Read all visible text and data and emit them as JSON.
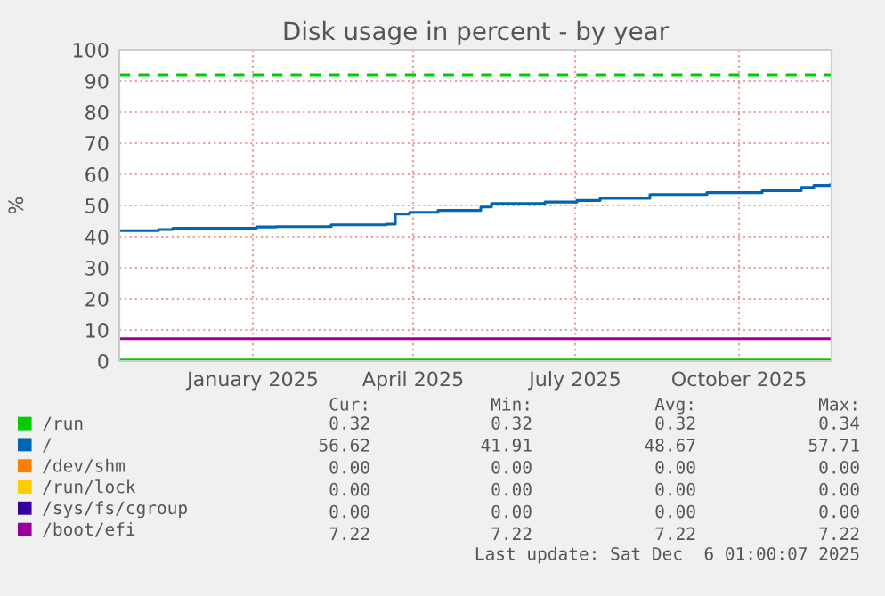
{
  "chart_data": {
    "type": "line",
    "title": "Disk usage in percent - by year",
    "ylabel": "%",
    "xlim": [
      "2024-11-01",
      "2025-12-06"
    ],
    "xticks": [
      {
        "value": "2025-01-15",
        "label": "January 2025"
      },
      {
        "value": "2025-04-15",
        "label": "April 2025"
      },
      {
        "value": "2025-07-15",
        "label": "July 2025"
      },
      {
        "value": "2025-10-15",
        "label": "October 2025"
      }
    ],
    "ylim": [
      0,
      100
    ],
    "yticks": [
      0,
      10,
      20,
      30,
      40,
      50,
      60,
      70,
      80,
      90,
      100
    ],
    "grid": true,
    "legend": "bottom left",
    "ref_lines": [
      {
        "axis": "y",
        "value": 92,
        "color": "#00cc00",
        "line_style": "dashed"
      }
    ],
    "series": [
      {
        "name": "/run",
        "color": "#00cc00",
        "x": [
          "2024-11-01",
          "2025-12-05"
        ],
        "values": [
          0.32,
          0.32
        ]
      },
      {
        "name": "/",
        "color": "#0066b3",
        "type": "step",
        "x": [
          "2024-11-01",
          "2024-11-23",
          "2024-12-01",
          "2025-01-17",
          "2025-01-28",
          "2025-02-28",
          "2025-03-31",
          "2025-04-05",
          "2025-04-13",
          "2025-04-29",
          "2025-05-23",
          "2025-05-29",
          "2025-06-28",
          "2025-07-16",
          "2025-07-29",
          "2025-08-26",
          "2025-09-27",
          "2025-10-28",
          "2025-11-19",
          "2025-11-26",
          "2025-12-05"
        ],
        "values": [
          41.91,
          42.3,
          42.7,
          43.1,
          43.2,
          43.8,
          44.0,
          47.2,
          47.8,
          48.4,
          49.5,
          50.6,
          51.1,
          51.6,
          52.3,
          53.5,
          54.1,
          54.7,
          55.8,
          56.4,
          56.62
        ]
      },
      {
        "name": "/dev/shm",
        "color": "#ff8000",
        "values": [
          null
        ]
      },
      {
        "name": "/run/lock",
        "color": "#ffcc00",
        "values": [
          null
        ]
      },
      {
        "name": "/sys/fs/cgroup",
        "color": "#330099",
        "values": [
          null
        ]
      },
      {
        "name": "/boot/efi",
        "color": "#990099",
        "x": [
          "2024-11-01",
          "2025-12-05"
        ],
        "values": [
          7.22,
          7.22
        ]
      }
    ],
    "annotations": [
      "Cur:",
      "Min:",
      "Avg:",
      "Max:",
      "0.32",
      "0.32",
      "0.32",
      "0.34",
      "56.62",
      "41.91",
      "48.67",
      "57.71",
      "0.00",
      "0.00",
      "0.00",
      "0.00",
      "0.00",
      "0.00",
      "0.00",
      "0.00",
      "0.00",
      "0.00",
      "0.00",
      "0.00",
      "7.22",
      "7.22",
      "7.22",
      "7.22",
      "Last update: Sat Dec  6 01:00:07 2025"
    ]
  }
}
